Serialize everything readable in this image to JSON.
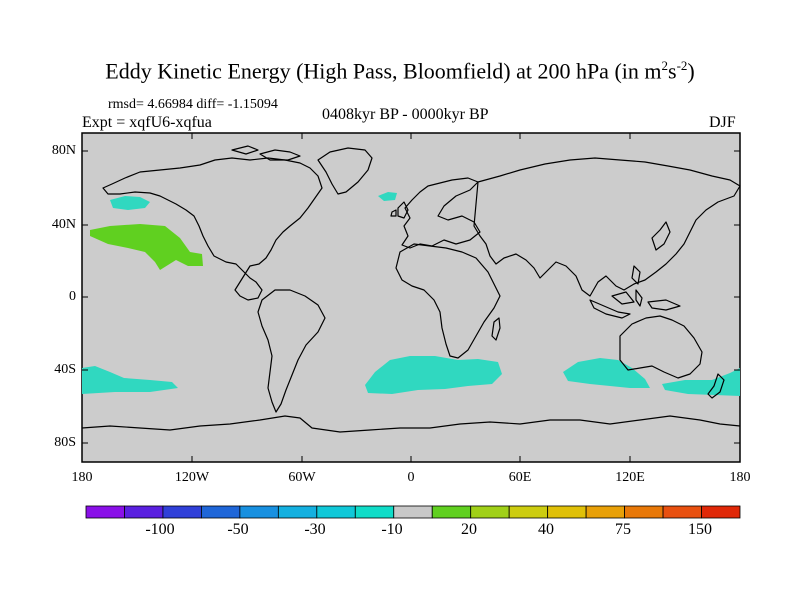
{
  "title": {
    "main": "Eddy Kinetic Energy (High Pass, Bloomfield) at 200 hPa (in m",
    "sup1": "2",
    "mid": "s",
    "sup2": "-2",
    "end": ")"
  },
  "stats": {
    "rmsd_line": "rmsd= 4.66984 diff= -1.15094"
  },
  "experiment": "Expt = xqfU6-xqfua",
  "period": "0408kyr BP - 0000kyr BP",
  "season": "DJF",
  "lat_labels": [
    "80N",
    "40N",
    "0",
    "40S",
    "80S"
  ],
  "lon_labels": [
    "180",
    "120W",
    "60W",
    "0",
    "60E",
    "120E",
    "180"
  ],
  "colorbar": {
    "colors": [
      "#8a10e8",
      "#5a20e0",
      "#3040d8",
      "#1f66d8",
      "#1890e0",
      "#14b0e0",
      "#10c8d8",
      "#10dcc8",
      "#c8c8c8",
      "#60d020",
      "#a0d018",
      "#cccc10",
      "#e0c008",
      "#e8a008",
      "#e87808",
      "#e85010",
      "#e02808"
    ],
    "labels": [
      "-100",
      "-50",
      "-30",
      "-10",
      "20",
      "40",
      "75",
      "150"
    ]
  },
  "map": {
    "land_fill": "#d0d0d0",
    "ocean_fill": "#cccccc",
    "coast_color": "#000000"
  },
  "anomaly_regions": [
    {
      "name": "north-pacific-positive",
      "color": "#60d020"
    },
    {
      "name": "north-pacific-negative",
      "color": "#30d8c0"
    },
    {
      "name": "iceland-negative",
      "color": "#30d8c0"
    },
    {
      "name": "south-atlantic-negative",
      "color": "#30d8c0"
    },
    {
      "name": "south-indian-negative",
      "color": "#30d8c0"
    },
    {
      "name": "south-pacific-west-negative",
      "color": "#30d8c0"
    },
    {
      "name": "south-pacific-east-negative",
      "color": "#30d8c0"
    },
    {
      "name": "tasman-negative",
      "color": "#30d8c0"
    }
  ]
}
